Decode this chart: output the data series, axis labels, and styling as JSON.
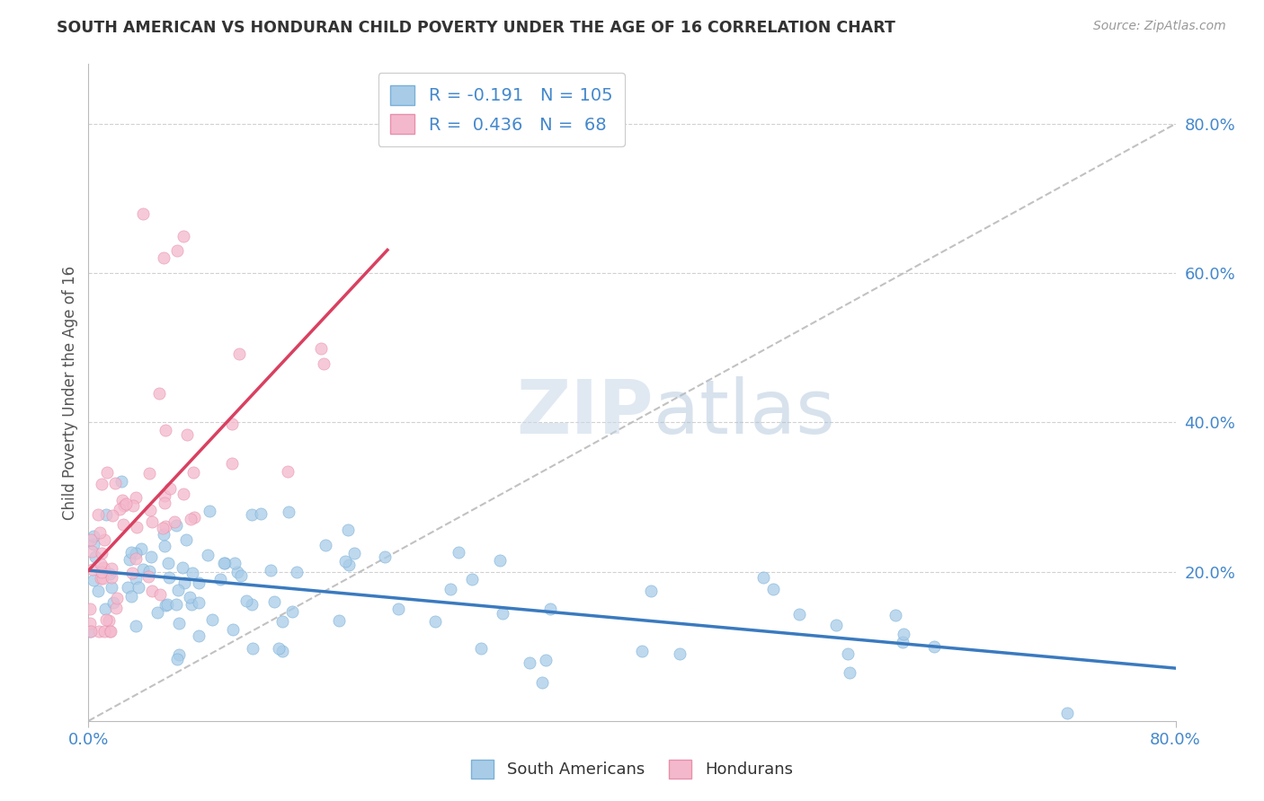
{
  "title": "SOUTH AMERICAN VS HONDURAN CHILD POVERTY UNDER THE AGE OF 16 CORRELATION CHART",
  "source": "Source: ZipAtlas.com",
  "ylabel": "Child Poverty Under the Age of 16",
  "watermark_zip": "ZIP",
  "watermark_atlas": "atlas",
  "series1": {
    "name": "South Americans",
    "color": "#a8cce8",
    "border_color": "#7ab0d8",
    "R": -0.191,
    "N": 105
  },
  "series2": {
    "name": "Hondurans",
    "color": "#f4b8cc",
    "border_color": "#e890aa",
    "R": 0.436,
    "N": 68
  },
  "xlim": [
    0.0,
    0.8
  ],
  "ylim": [
    0.0,
    0.88
  ],
  "yticks": [
    0.2,
    0.4,
    0.6,
    0.8
  ],
  "ytick_labels": [
    "20.0%",
    "40.0%",
    "60.0%",
    "80.0%"
  ],
  "xtick_labels": [
    "0.0%",
    "80.0%"
  ],
  "background_color": "#ffffff",
  "grid_color": "#cccccc",
  "trend_line1_color": "#3a7abf",
  "trend_line2_color": "#d94060",
  "trend_line_ref_color": "#bbbbbb",
  "axis_color": "#4488cc",
  "title_color": "#333333",
  "source_color": "#999999"
}
